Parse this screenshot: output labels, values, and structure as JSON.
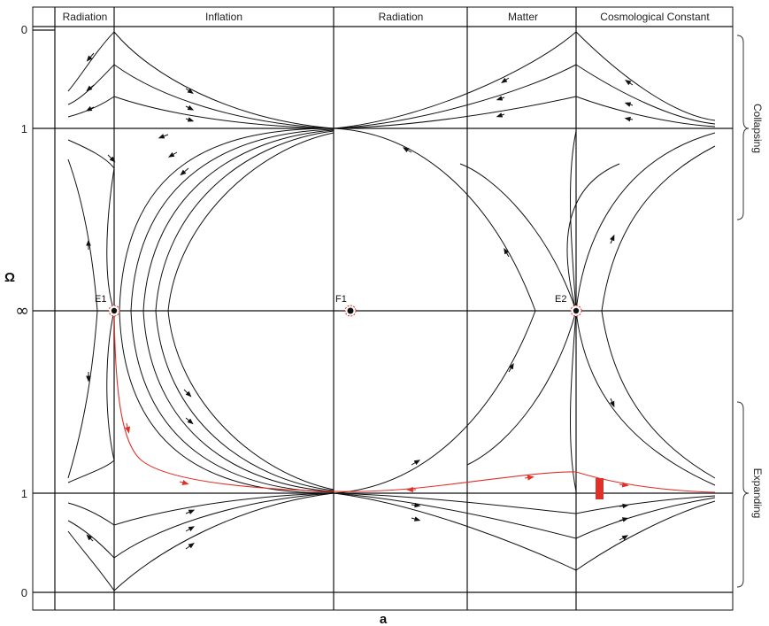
{
  "headers": [
    "Radiation",
    "Inflation",
    "Radiation",
    "Matter",
    "Cosmological Constant"
  ],
  "y_axis": {
    "title": "Ω",
    "ticks": [
      "0",
      "1",
      "∞",
      "1",
      "0"
    ]
  },
  "x_axis": {
    "title": "a"
  },
  "points": [
    {
      "label": "E1"
    },
    {
      "label": "F1"
    },
    {
      "label": "E2"
    }
  ],
  "side_labels": {
    "upper": "Collapsing",
    "lower": "Expanding"
  },
  "colors": {
    "lines": "#111111",
    "highlight": "#e0302a",
    "background": "#ffffff"
  }
}
